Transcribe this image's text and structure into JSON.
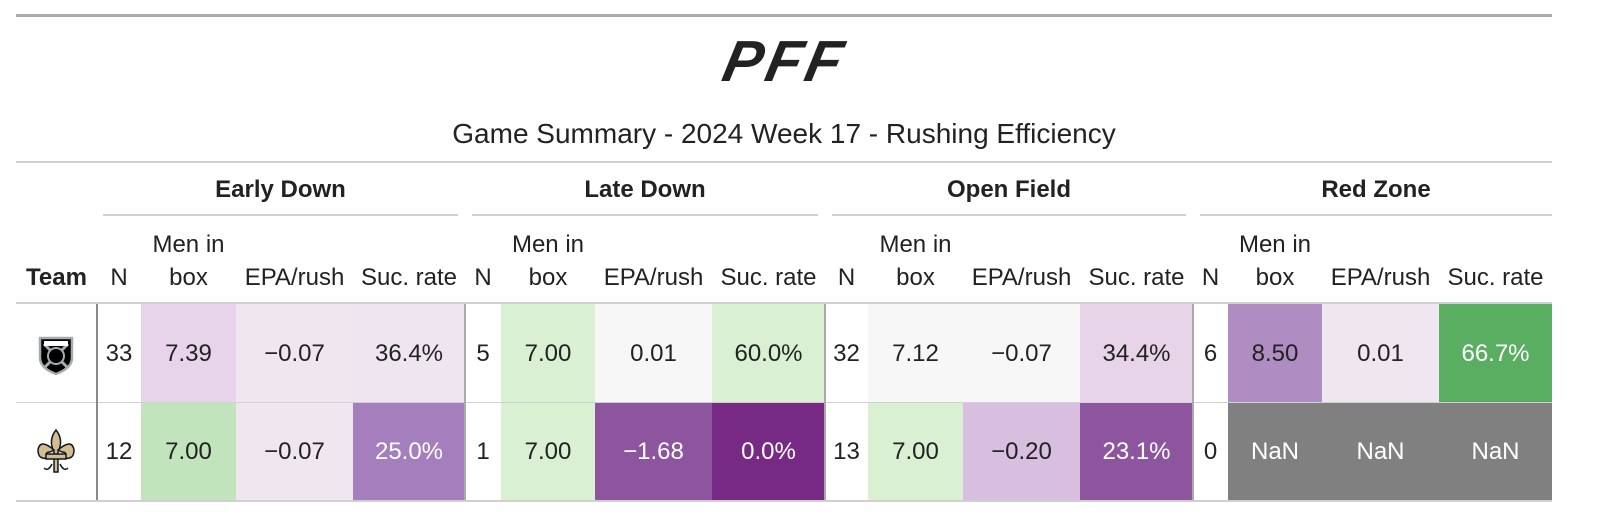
{
  "header": {
    "logo": "PFF",
    "title": "Game Summary - 2024 Week 17 - Rushing Efficiency"
  },
  "table": {
    "groups": [
      "Early Down",
      "Late Down",
      "Open Field",
      "Red Zone"
    ],
    "columns": [
      "Team",
      "N",
      "Men in box",
      "EPA/rush",
      "Suc. rate",
      "N",
      "Men in box",
      "EPA/rush",
      "Suc. rate",
      "N",
      "Men in box",
      "EPA/rush",
      "Suc. rate",
      "N",
      "Men in box",
      "EPA/rush",
      "Suc. rate"
    ],
    "rows": [
      {
        "cells": [
          "33",
          "7.39",
          "−0.07",
          "36.4%",
          "5",
          "7.00",
          "0.01",
          "60.0%",
          "32",
          "7.12",
          "−0.07",
          "34.4%",
          "6",
          "8.50",
          "0.01",
          "66.7%"
        ],
        "colors": [
          "#ffffff",
          "#e8d4ea",
          "#f0e6f0",
          "#efe5f0",
          "#ffffff",
          "#d9f0d3",
          "#f7f7f7",
          "#d9f0d3",
          "#ffffff",
          "#f7f7f7",
          "#f7f7f7",
          "#e7d4e8",
          "#ffffff",
          "#af8dc3",
          "#f0e6f0",
          "#5aae61"
        ]
      },
      {
        "cells": [
          "12",
          "7.00",
          "−0.07",
          "25.0%",
          "1",
          "7.00",
          "−1.68",
          "0.0%",
          "13",
          "7.00",
          "−0.20",
          "23.1%",
          "0",
          "NaN",
          "NaN",
          "NaN"
        ],
        "colors": [
          "#ffffff",
          "#c2e4bc",
          "#f0e6f0",
          "#a57fbd",
          "#ffffff",
          "#d9f0d3",
          "#8e559f",
          "#762a83",
          "#ffffff",
          "#d9f0d3",
          "#d8bedf",
          "#8e559f",
          "#ffffff",
          "#808080",
          "#808080",
          "#808080"
        ]
      }
    ]
  }
}
